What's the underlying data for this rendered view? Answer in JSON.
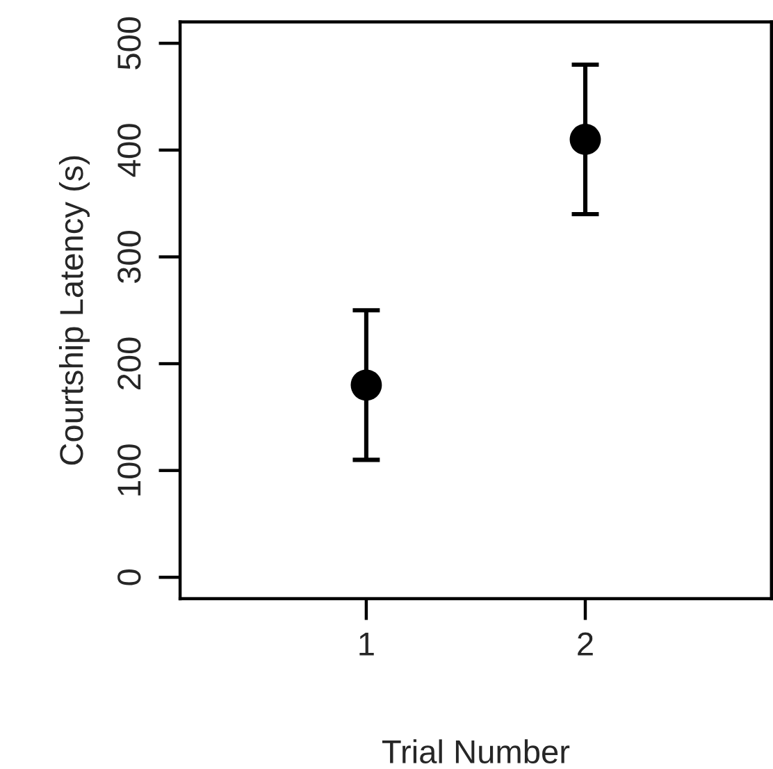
{
  "chart_data": {
    "type": "scatter",
    "xlabel": "Trial Number",
    "ylabel": "Courtship Latency (s)",
    "x": [
      1,
      2
    ],
    "values": [
      180,
      410
    ],
    "errors": [
      70,
      70
    ],
    "color": "#000000",
    "marker": "circle",
    "xlim": [
      0.15,
      2.85
    ],
    "xticks": [
      1,
      2
    ],
    "ylim": [
      -20,
      520
    ],
    "yticks": [
      0,
      100,
      200,
      300,
      400,
      500
    ],
    "grid": false,
    "legend": false
  }
}
